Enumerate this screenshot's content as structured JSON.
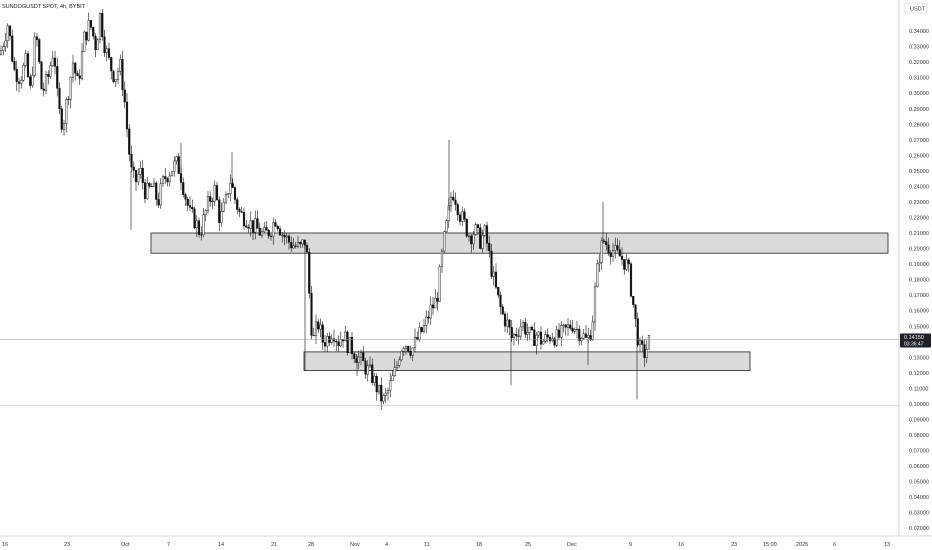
{
  "chart_title": "SUNDOGUSDT SPOT, 4h, BYBIT",
  "currency": "USDT",
  "price_badge": {
    "price": "0.14150",
    "countdown": "03:36:47"
  },
  "colors": {
    "candle": "#111111",
    "zone_fill": "#d4d4d4",
    "zone_stroke": "#222222",
    "grid": "#eeeeee"
  },
  "chart_data": {
    "type": "candlestick",
    "y_axis": {
      "min": 0.015,
      "max": 0.36,
      "ticks": [
        "0.35000",
        "0.34000",
        "0.33000",
        "0.32000",
        "0.31000",
        "0.30000",
        "0.29000",
        "0.28000",
        "0.27000",
        "0.26000",
        "0.25000",
        "0.24000",
        "0.23000",
        "0.22000",
        "0.21000",
        "0.20000",
        "0.19000",
        "0.18000",
        "0.17000",
        "0.16000",
        "0.15000",
        "0.14000",
        "0.13000",
        "0.12000",
        "0.11000",
        "0.10000",
        "0.09000",
        "0.08000",
        "0.07000",
        "0.06000",
        "0.05000",
        "0.04000",
        "0.03000",
        "0.02000"
      ]
    },
    "x_axis": {
      "ticks": [
        "16",
        "23",
        "Oct",
        "7",
        "14",
        "21",
        "28",
        "Nov",
        "4",
        "11",
        "18",
        "25",
        "Dec",
        "9",
        "16",
        "23",
        "15:00",
        "2025",
        "6",
        "13"
      ]
    },
    "current_price": 0.1415,
    "reference_line": 0.099,
    "zones": [
      {
        "top": 0.21,
        "bottom": 0.197
      },
      {
        "top": 0.1335,
        "bottom": 0.1215
      }
    ],
    "path": [
      [
        0,
        0.325
      ],
      [
        8,
        0.345
      ],
      [
        14,
        0.315
      ],
      [
        20,
        0.31
      ],
      [
        26,
        0.32
      ],
      [
        30,
        0.3
      ],
      [
        36,
        0.34
      ],
      [
        42,
        0.3
      ],
      [
        48,
        0.31
      ],
      [
        54,
        0.33
      ],
      [
        58,
        0.29
      ],
      [
        63,
        0.28
      ],
      [
        68,
        0.3
      ],
      [
        73,
        0.32
      ],
      [
        78,
        0.305
      ],
      [
        84,
        0.335
      ],
      [
        90,
        0.345
      ],
      [
        96,
        0.33
      ],
      [
        100,
        0.35
      ],
      [
        105,
        0.33
      ],
      [
        110,
        0.318
      ],
      [
        115,
        0.31
      ],
      [
        120,
        0.318
      ],
      [
        124,
        0.3
      ],
      [
        128,
        0.27
      ],
      [
        131,
        0.25
      ],
      [
        135,
        0.242
      ],
      [
        140,
        0.25
      ],
      [
        146,
        0.235
      ],
      [
        152,
        0.24
      ],
      [
        158,
        0.23
      ],
      [
        164,
        0.245
      ],
      [
        170,
        0.25
      ],
      [
        176,
        0.255
      ],
      [
        180,
        0.25
      ],
      [
        185,
        0.235
      ],
      [
        190,
        0.222
      ],
      [
        195,
        0.218
      ],
      [
        200,
        0.21
      ],
      [
        205,
        0.222
      ],
      [
        210,
        0.232
      ],
      [
        215,
        0.238
      ],
      [
        220,
        0.218
      ],
      [
        226,
        0.23
      ],
      [
        230,
        0.245
      ],
      [
        235,
        0.232
      ],
      [
        240,
        0.222
      ],
      [
        246,
        0.22
      ],
      [
        252,
        0.215
      ],
      [
        258,
        0.212
      ],
      [
        264,
        0.208
      ],
      [
        270,
        0.212
      ],
      [
        276,
        0.22
      ],
      [
        282,
        0.21
      ],
      [
        288,
        0.205
      ],
      [
        294,
        0.202
      ],
      [
        300,
        0.2
      ],
      [
        305,
        0.205
      ],
      [
        308,
        0.19
      ],
      [
        310,
        0.16
      ],
      [
        313,
        0.14
      ],
      [
        318,
        0.152
      ],
      [
        323,
        0.14
      ],
      [
        328,
        0.143
      ],
      [
        333,
        0.148
      ],
      [
        338,
        0.14
      ],
      [
        343,
        0.145
      ],
      [
        348,
        0.138
      ],
      [
        353,
        0.135
      ],
      [
        358,
        0.13
      ],
      [
        362,
        0.127
      ],
      [
        367,
        0.122
      ],
      [
        372,
        0.118
      ],
      [
        376,
        0.112
      ],
      [
        380,
        0.105
      ],
      [
        384,
        0.102
      ],
      [
        388,
        0.108
      ],
      [
        392,
        0.115
      ],
      [
        396,
        0.122
      ],
      [
        400,
        0.135
      ],
      [
        404,
        0.14
      ],
      [
        408,
        0.138
      ],
      [
        412,
        0.135
      ],
      [
        416,
        0.14
      ],
      [
        420,
        0.145
      ],
      [
        425,
        0.15
      ],
      [
        430,
        0.16
      ],
      [
        435,
        0.165
      ],
      [
        438,
        0.172
      ],
      [
        441,
        0.19
      ],
      [
        444,
        0.205
      ],
      [
        448,
        0.22
      ],
      [
        452,
        0.238
      ],
      [
        456,
        0.232
      ],
      [
        460,
        0.222
      ],
      [
        465,
        0.215
      ],
      [
        470,
        0.208
      ],
      [
        475,
        0.212
      ],
      [
        480,
        0.205
      ],
      [
        485,
        0.21
      ],
      [
        488,
        0.2
      ],
      [
        492,
        0.185
      ],
      [
        497,
        0.17
      ],
      [
        502,
        0.158
      ],
      [
        507,
        0.152
      ],
      [
        512,
        0.142
      ],
      [
        517,
        0.147
      ],
      [
        522,
        0.152
      ],
      [
        527,
        0.147
      ],
      [
        532,
        0.142
      ],
      [
        537,
        0.145
      ],
      [
        542,
        0.14
      ],
      [
        547,
        0.142
      ],
      [
        552,
        0.145
      ],
      [
        557,
        0.142
      ],
      [
        562,
        0.145
      ],
      [
        567,
        0.148
      ],
      [
        572,
        0.152
      ],
      [
        577,
        0.148
      ],
      [
        582,
        0.145
      ],
      [
        587,
        0.14
      ],
      [
        592,
        0.15
      ],
      [
        596,
        0.18
      ],
      [
        600,
        0.198
      ],
      [
        604,
        0.205
      ],
      [
        608,
        0.202
      ],
      [
        612,
        0.2
      ],
      [
        616,
        0.196
      ],
      [
        620,
        0.195
      ],
      [
        624,
        0.192
      ],
      [
        628,
        0.188
      ],
      [
        632,
        0.17
      ],
      [
        636,
        0.15
      ],
      [
        640,
        0.135
      ],
      [
        644,
        0.132
      ],
      [
        648,
        0.138
      ],
      [
        650,
        0.142
      ]
    ],
    "spikes": [
      [
        131,
        0.212
      ],
      [
        181,
        0.268
      ],
      [
        232,
        0.262
      ],
      [
        305,
        0.121
      ],
      [
        357,
        0.118
      ],
      [
        449,
        0.27
      ],
      [
        511,
        0.112
      ],
      [
        588,
        0.125
      ],
      [
        603,
        0.23
      ],
      [
        637,
        0.103
      ]
    ]
  }
}
